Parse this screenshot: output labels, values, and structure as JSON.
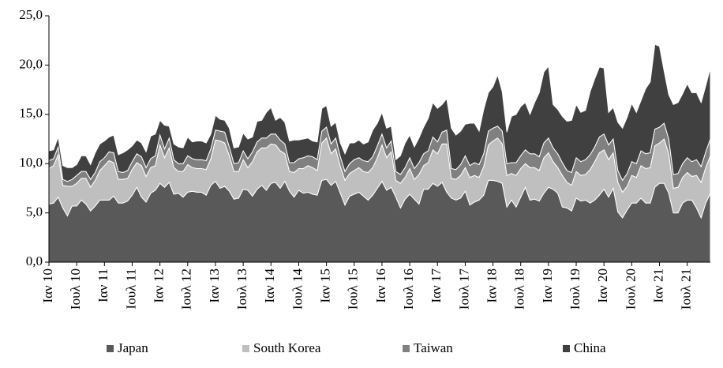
{
  "chart_data": {
    "type": "stacked-area",
    "categories": [
      "Ιαν 10",
      null,
      null,
      null,
      null,
      null,
      "Ιουλ 10",
      null,
      null,
      null,
      null,
      null,
      "Ιαν 11",
      null,
      null,
      null,
      null,
      null,
      "Ιουλ 11",
      null,
      null,
      null,
      null,
      null,
      "Ιαν 12",
      null,
      null,
      null,
      null,
      null,
      "Ιουλ 12",
      null,
      null,
      null,
      null,
      null,
      "Ιαν 13",
      null,
      null,
      null,
      null,
      null,
      "Ιουλ 13",
      null,
      null,
      null,
      null,
      null,
      "Ιαν 14",
      null,
      null,
      null,
      null,
      null,
      "Ιουλ 14",
      null,
      null,
      null,
      null,
      null,
      "Ιαν 15",
      null,
      null,
      null,
      null,
      null,
      "Ιουλ 15",
      null,
      null,
      null,
      null,
      null,
      "Ιαν 16",
      null,
      null,
      null,
      null,
      null,
      "Ιουλ 16",
      null,
      null,
      null,
      null,
      null,
      "Ιαν 17",
      null,
      null,
      null,
      null,
      null,
      "Ιουλ 17",
      null,
      null,
      null,
      null,
      null,
      "Ιαν 18",
      null,
      null,
      null,
      null,
      null,
      "Ιουλ 18",
      null,
      null,
      null,
      null,
      null,
      "Ιαν 19",
      null,
      null,
      null,
      null,
      null,
      "Ιουλ 19",
      null,
      null,
      null,
      null,
      null,
      "Ιαν 20",
      null,
      null,
      null,
      null,
      null,
      "Ιουλ 20",
      null,
      null,
      null,
      null,
      null,
      "Ιαν 21",
      null,
      null,
      null,
      null,
      null,
      "Ιουλ 21",
      null,
      null,
      null,
      null,
      null
    ],
    "series": [
      {
        "name": "Japan",
        "color": "#595959",
        "values": [
          5.9,
          6.0,
          6.6,
          5.5,
          4.7,
          5.7,
          5.7,
          6.3,
          5.9,
          5.2,
          5.7,
          6.3,
          6.3,
          6.3,
          6.7,
          6.0,
          6.0,
          6.2,
          6.8,
          7.6,
          6.6,
          6.1,
          7.0,
          7.3,
          8.0,
          7.6,
          8.1,
          6.9,
          7.0,
          6.6,
          7.1,
          7.2,
          7.1,
          7.1,
          6.8,
          7.8,
          8.2,
          7.5,
          7.7,
          7.2,
          6.4,
          6.5,
          7.4,
          7.3,
          6.7,
          7.4,
          7.8,
          7.3,
          8.0,
          8.1,
          7.5,
          8.2,
          7.2,
          6.6,
          7.3,
          7.0,
          7.1,
          6.9,
          6.8,
          8.3,
          8.4,
          7.8,
          8.2,
          7.0,
          5.8,
          6.7,
          6.9,
          7.1,
          6.7,
          6.3,
          6.8,
          7.5,
          8.2,
          7.3,
          7.6,
          6.6,
          5.5,
          6.4,
          6.9,
          6.4,
          5.9,
          7.4,
          7.4,
          8.0,
          7.7,
          8.1,
          7.1,
          6.5,
          6.3,
          6.5,
          7.2,
          5.8,
          6.1,
          6.3,
          6.8,
          8.3,
          8.3,
          8.2,
          8.0,
          5.6,
          6.3,
          5.6,
          6.6,
          7.6,
          6.3,
          6.4,
          6.2,
          7.0,
          7.6,
          7.4,
          7.0,
          5.6,
          5.5,
          5.2,
          6.5,
          6.2,
          6.3,
          6.0,
          6.3,
          6.8,
          7.4,
          6.6,
          7.5,
          5.1,
          4.5,
          5.3,
          6.0,
          6.0,
          6.5,
          6.0,
          6.0,
          7.6,
          8.0,
          8.0,
          7.0,
          5.0,
          5.0,
          6.0,
          6.3,
          6.3,
          5.5,
          4.5,
          6.0,
          7.0
        ]
      },
      {
        "name": "South Korea",
        "color": "#bfbfbf",
        "values": [
          3.6,
          3.8,
          4.3,
          2.3,
          3.0,
          2.0,
          2.3,
          2.2,
          2.6,
          2.4,
          2.6,
          3.0,
          3.5,
          4.0,
          3.4,
          2.4,
          2.4,
          2.3,
          2.6,
          2.5,
          3.2,
          2.6,
          2.6,
          2.5,
          3.9,
          3.0,
          3.5,
          2.7,
          2.2,
          2.6,
          2.8,
          2.4,
          2.4,
          2.4,
          2.6,
          2.7,
          4.2,
          4.8,
          4.4,
          3.6,
          2.8,
          2.7,
          3.0,
          2.3,
          3.5,
          3.8,
          3.8,
          4.3,
          4.0,
          3.8,
          3.8,
          2.8,
          2.0,
          2.5,
          2.2,
          2.5,
          2.7,
          2.7,
          2.5,
          3.8,
          4.2,
          3.2,
          3.3,
          2.7,
          2.5,
          2.3,
          2.4,
          2.5,
          2.5,
          2.8,
          2.8,
          3.1,
          3.7,
          3.3,
          3.6,
          1.7,
          2.5,
          2.2,
          2.6,
          2.0,
          3.0,
          2.4,
          2.7,
          3.4,
          3.3,
          3.9,
          4.9,
          2.0,
          2.1,
          2.3,
          2.4,
          2.8,
          2.7,
          2.3,
          2.9,
          3.6,
          4.0,
          4.4,
          4.0,
          3.2,
          2.7,
          3.2,
          2.9,
          2.4,
          3.3,
          3.2,
          3.1,
          3.6,
          3.5,
          2.8,
          2.6,
          3.2,
          2.6,
          2.6,
          2.7,
          2.6,
          2.6,
          3.4,
          3.9,
          4.3,
          4.0,
          3.8,
          3.6,
          3.0,
          2.6,
          2.4,
          2.8,
          2.6,
          3.3,
          3.5,
          3.6,
          4.2,
          4.1,
          4.5,
          4.0,
          2.5,
          2.6,
          2.6,
          2.8,
          2.4,
          3.3,
          3.6,
          3.6,
          3.8
        ]
      },
      {
        "name": "Taiwan",
        "color": "#808080",
        "values": [
          0.8,
          0.7,
          0.8,
          0.6,
          0.5,
          0.7,
          0.8,
          0.7,
          0.7,
          0.8,
          0.8,
          0.9,
          0.8,
          0.9,
          1.0,
          0.8,
          0.7,
          0.8,
          0.8,
          0.9,
          0.9,
          0.9,
          0.9,
          1.0,
          1.0,
          0.9,
          1.0,
          0.8,
          0.8,
          0.8,
          0.9,
          0.9,
          0.9,
          0.9,
          0.9,
          1.0,
          1.0,
          1.0,
          1.1,
          0.9,
          0.8,
          0.9,
          0.9,
          0.9,
          1.0,
          1.0,
          1.0,
          1.0,
          1.0,
          1.1,
          1.1,
          1.0,
          0.9,
          1.0,
          1.0,
          1.1,
          1.0,
          1.1,
          1.1,
          1.2,
          1.1,
          1.0,
          1.1,
          1.0,
          0.9,
          1.0,
          1.1,
          1.0,
          1.1,
          1.1,
          1.1,
          1.2,
          1.1,
          1.0,
          1.1,
          0.9,
          0.9,
          1.0,
          1.1,
          1.1,
          1.2,
          1.2,
          1.2,
          1.3,
          1.2,
          1.2,
          1.4,
          1.0,
          1.0,
          1.1,
          1.2,
          1.2,
          1.3,
          1.3,
          1.3,
          1.4,
          1.3,
          1.2,
          1.3,
          1.2,
          1.1,
          1.3,
          1.3,
          1.4,
          1.4,
          1.4,
          1.4,
          1.5,
          1.5,
          1.4,
          1.4,
          1.3,
          1.2,
          1.3,
          1.4,
          1.4,
          1.5,
          1.5,
          1.5,
          1.6,
          1.6,
          1.5,
          1.4,
          1.2,
          1.2,
          1.3,
          1.4,
          1.4,
          1.5,
          1.5,
          1.5,
          1.7,
          1.6,
          1.6,
          1.5,
          1.4,
          1.4,
          1.4,
          1.5,
          1.5,
          1.6,
          1.6,
          1.6,
          1.7
        ]
      },
      {
        "name": "China",
        "color": "#404040",
        "values": [
          1.0,
          0.9,
          1.0,
          1.4,
          1.4,
          1.2,
          1.1,
          1.6,
          1.6,
          1.5,
          2.0,
          1.8,
          1.7,
          1.5,
          1.8,
          1.7,
          2.0,
          2.1,
          1.6,
          1.4,
          1.4,
          1.6,
          2.3,
          2.2,
          1.5,
          2.4,
          1.2,
          1.6,
          1.7,
          1.6,
          1.9,
          1.7,
          1.9,
          1.9,
          1.8,
          1.5,
          1.5,
          1.2,
          1.2,
          1.9,
          1.6,
          1.6,
          1.8,
          2.0,
          1.5,
          2.1,
          1.8,
          2.6,
          2.7,
          1.4,
          2.3,
          2.2,
          2.2,
          2.3,
          1.9,
          1.9,
          1.8,
          1.6,
          1.8,
          2.3,
          2.2,
          1.8,
          1.6,
          1.4,
          1.8,
          2.1,
          1.7,
          1.8,
          1.7,
          2.0,
          2.7,
          2.3,
          2.2,
          2.0,
          1.5,
          1.2,
          1.9,
          2.5,
          2.3,
          2.2,
          2.5,
          2.7,
          3.3,
          3.5,
          3.4,
          2.8,
          3.2,
          4.1,
          3.5,
          3.4,
          3.2,
          4.3,
          4.0,
          3.4,
          4.5,
          3.9,
          4.2,
          5.2,
          4.0,
          3.2,
          4.7,
          4.9,
          5.0,
          4.8,
          4.0,
          5.2,
          6.5,
          7.2,
          7.3,
          4.4,
          4.5,
          4.7,
          5.0,
          5.3,
          5.4,
          5.0,
          5.0,
          6.4,
          6.9,
          7.1,
          6.7,
          3.3,
          3.2,
          4.9,
          5.3,
          5.7,
          5.9,
          5.2,
          5.1,
          6.6,
          7.2,
          8.6,
          8.2,
          5.3,
          4.5,
          7.1,
          7.2,
          7.1,
          7.5,
          7.0,
          6.8,
          6.5,
          6.7,
          7.2
        ]
      }
    ],
    "ylim": [
      0,
      25
    ],
    "yticks": [
      {
        "value": 0,
        "label": "0,0"
      },
      {
        "value": 5,
        "label": "5,0"
      },
      {
        "value": 10,
        "label": "10,0"
      },
      {
        "value": 15,
        "label": "15,0"
      },
      {
        "value": 20,
        "label": "20,0"
      },
      {
        "value": 25,
        "label": "25,0"
      }
    ],
    "legend": "bottom"
  }
}
